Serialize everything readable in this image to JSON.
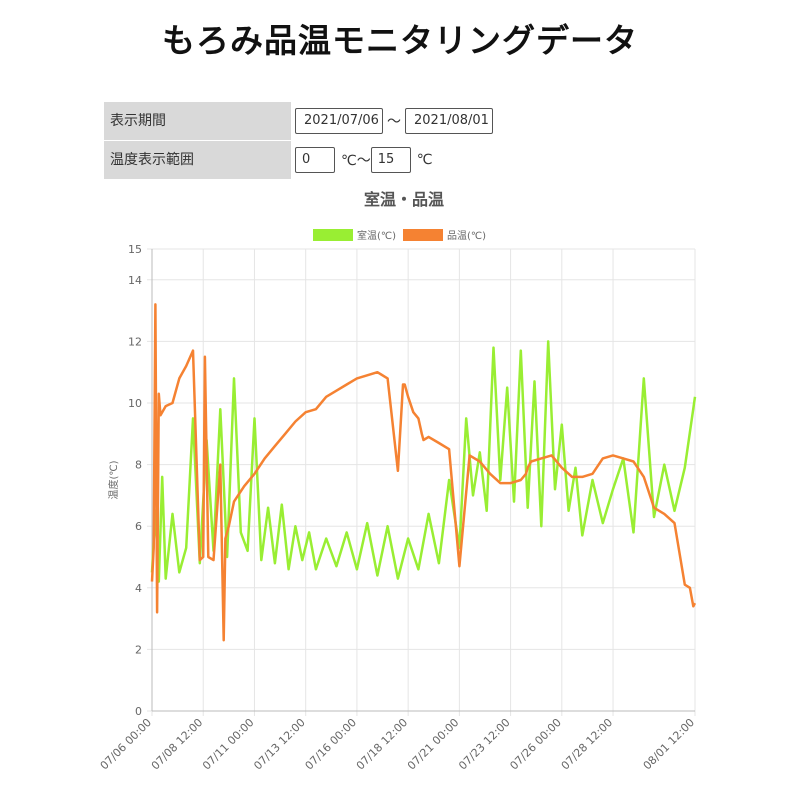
{
  "page": {
    "title": "もろみ品温モニタリングデータ"
  },
  "filters": {
    "period_label": "表示期間",
    "start_date": "2021/07/06",
    "date_separator": "〜",
    "end_date": "2021/08/01",
    "range_label": "温度表示範囲",
    "temp_min": "0",
    "temp_unit_sep": "℃〜",
    "temp_max": "15",
    "temp_unit": "℃"
  },
  "chart_data": {
    "type": "line",
    "title": "室温・品温",
    "ylabel": "温度(℃)",
    "xlabel": "",
    "ylim": [
      0,
      15
    ],
    "yticks": [
      0,
      2,
      4,
      6,
      8,
      10,
      12,
      14,
      15
    ],
    "grid": true,
    "legend_position": "top-center",
    "xticks": [
      "07/06 00:00",
      "07/08 12:00",
      "07/11 00:00",
      "07/13 12:00",
      "07/16 00:00",
      "07/18 12:00",
      "07/21 00:00",
      "07/23 12:00",
      "07/26 00:00",
      "07/28 12:00",
      "08/01 12:00"
    ],
    "series": [
      {
        "name": "室温(℃)",
        "color": "#99ee33",
        "x": [
          "07/06 00:00",
          "07/06 04:00",
          "07/06 08:00",
          "07/06 12:00",
          "07/06 16:00",
          "07/07 00:00",
          "07/07 08:00",
          "07/07 16:00",
          "07/08 00:00",
          "07/08 08:00",
          "07/08 16:00",
          "07/09 00:00",
          "07/09 08:00",
          "07/09 16:00",
          "07/10 00:00",
          "07/10 08:00",
          "07/10 16:00",
          "07/11 00:00",
          "07/11 08:00",
          "07/11 16:00",
          "07/12 00:00",
          "07/12 08:00",
          "07/12 16:00",
          "07/13 00:00",
          "07/13 08:00",
          "07/13 16:00",
          "07/14 00:00",
          "07/14 12:00",
          "07/15 00:00",
          "07/15 12:00",
          "07/16 00:00",
          "07/16 12:00",
          "07/17 00:00",
          "07/17 12:00",
          "07/18 00:00",
          "07/18 12:00",
          "07/19 00:00",
          "07/19 12:00",
          "07/20 00:00",
          "07/20 12:00",
          "07/21 00:00",
          "07/21 08:00",
          "07/21 16:00",
          "07/22 00:00",
          "07/22 08:00",
          "07/22 16:00",
          "07/23 00:00",
          "07/23 08:00",
          "07/23 16:00",
          "07/24 00:00",
          "07/24 08:00",
          "07/24 16:00",
          "07/25 00:00",
          "07/25 08:00",
          "07/25 16:00",
          "07/26 00:00",
          "07/26 08:00",
          "07/26 16:00",
          "07/27 00:00",
          "07/27 12:00",
          "07/28 00:00",
          "07/28 12:00",
          "07/29 00:00",
          "07/29 12:00",
          "07/30 00:00",
          "07/30 12:00",
          "07/31 00:00",
          "07/31 12:00",
          "08/01 00:00",
          "08/01 12:00"
        ],
        "values": [
          4.5,
          6.5,
          4.2,
          7.6,
          4.3,
          6.4,
          4.5,
          5.3,
          9.5,
          4.8,
          8.8,
          5.2,
          9.8,
          5.0,
          10.8,
          5.8,
          5.2,
          9.5,
          4.9,
          6.6,
          4.8,
          6.7,
          4.6,
          6.0,
          4.9,
          5.8,
          4.6,
          5.6,
          4.7,
          5.8,
          4.6,
          6.1,
          4.4,
          6.0,
          4.3,
          5.6,
          4.6,
          6.4,
          4.8,
          7.5,
          5.3,
          9.5,
          7.0,
          8.4,
          6.5,
          11.8,
          7.5,
          10.5,
          6.8,
          11.7,
          6.6,
          10.7,
          6.0,
          12.0,
          7.2,
          9.3,
          6.5,
          7.9,
          5.7,
          7.5,
          6.1,
          7.2,
          8.2,
          5.8,
          10.8,
          6.3,
          8.0,
          6.5,
          7.9,
          10.2
        ]
      },
      {
        "name": "品温(℃)",
        "color": "#f58232",
        "x": [
          "07/06 00:00",
          "07/06 02:00",
          "07/06 04:00",
          "07/06 06:00",
          "07/06 08:00",
          "07/06 10:00",
          "07/06 16:00",
          "07/07 00:00",
          "07/07 08:00",
          "07/07 16:00",
          "07/08 00:00",
          "07/08 08:00",
          "07/08 12:00",
          "07/08 14:00",
          "07/08 18:00",
          "07/09 00:00",
          "07/09 08:00",
          "07/09 12:00",
          "07/09 14:00",
          "07/09 18:00",
          "07/10 00:00",
          "07/10 12:00",
          "07/11 00:00",
          "07/11 12:00",
          "07/12 00:00",
          "07/12 12:00",
          "07/13 00:00",
          "07/13 12:00",
          "07/14 00:00",
          "07/14 12:00",
          "07/15 00:00",
          "07/15 12:00",
          "07/16 00:00",
          "07/16 12:00",
          "07/17 00:00",
          "07/17 12:00",
          "07/18 00:00",
          "07/18 06:00",
          "07/18 08:00",
          "07/18 12:00",
          "07/18 18:00",
          "07/19 00:00",
          "07/19 04:00",
          "07/19 06:00",
          "07/19 12:00",
          "07/20 00:00",
          "07/20 12:00",
          "07/21 00:00",
          "07/21 12:00",
          "07/22 00:00",
          "07/22 12:00",
          "07/23 00:00",
          "07/23 12:00",
          "07/24 00:00",
          "07/24 06:00",
          "07/24 08:00",
          "07/24 12:00",
          "07/25 00:00",
          "07/25 12:00",
          "07/26 00:00",
          "07/26 12:00",
          "07/27 00:00",
          "07/27 12:00",
          "07/28 00:00",
          "07/28 12:00",
          "07/29 00:00",
          "07/29 12:00",
          "07/30 00:00",
          "07/30 12:00",
          "07/31 00:00",
          "07/31 12:00",
          "08/01 00:00",
          "08/01 06:00",
          "08/01 10:00",
          "08/01 12:00"
        ],
        "values": [
          4.2,
          5.3,
          13.2,
          3.2,
          10.3,
          9.6,
          9.9,
          10.0,
          10.8,
          11.2,
          11.7,
          4.9,
          5.0,
          11.5,
          5.0,
          4.9,
          8.0,
          2.3,
          5.6,
          6.0,
          6.8,
          7.3,
          7.7,
          8.2,
          8.6,
          9.0,
          9.4,
          9.7,
          9.8,
          10.2,
          10.4,
          10.6,
          10.8,
          10.9,
          11.0,
          10.8,
          7.8,
          10.6,
          10.6,
          10.2,
          9.7,
          9.5,
          9.0,
          8.8,
          8.9,
          8.7,
          8.5,
          4.7,
          8.3,
          8.1,
          7.7,
          7.4,
          7.4,
          7.5,
          7.7,
          7.9,
          8.1,
          8.2,
          8.3,
          7.9,
          7.6,
          7.6,
          7.7,
          8.2,
          8.3,
          8.2,
          8.1,
          7.6,
          6.6,
          6.4,
          6.1,
          4.1,
          4.0,
          3.4,
          3.5
        ]
      }
    ]
  }
}
